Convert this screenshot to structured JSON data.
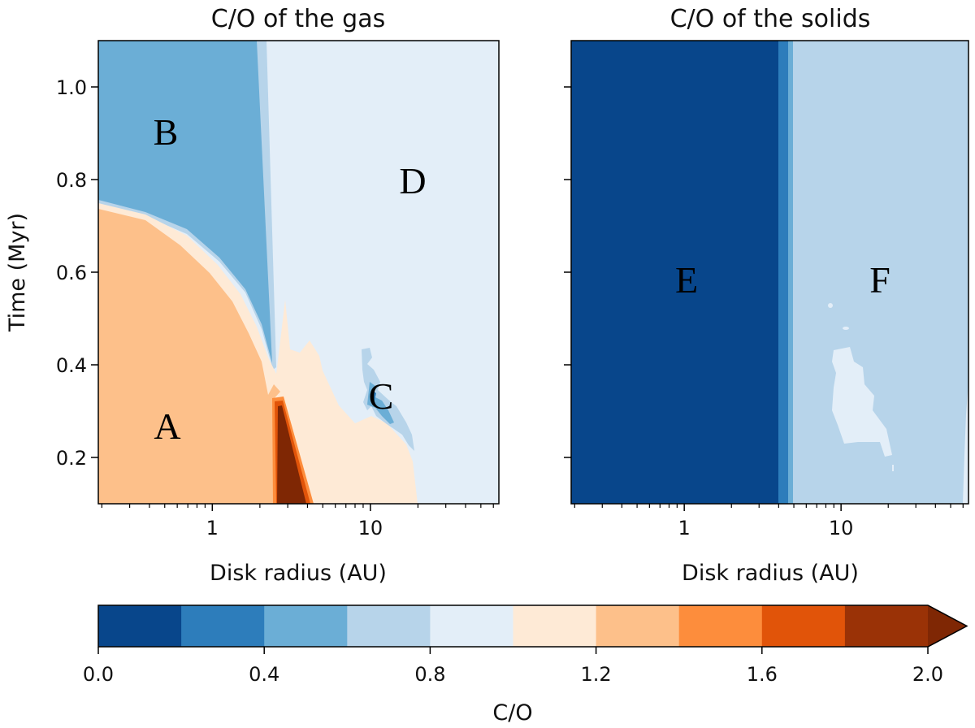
{
  "chart_data": [
    {
      "type": "heatmap",
      "title": "C/O of the gas",
      "xlabel": "Disk radius (AU)",
      "ylabel": "Time (Myr)",
      "xscale": "log",
      "xlim": [
        0.19,
        65
      ],
      "ylim": [
        0.1,
        1.1
      ],
      "xticks": [
        {
          "v": 1,
          "label": "1"
        },
        {
          "v": 10,
          "label": "10"
        }
      ],
      "yticks": [
        {
          "v": 0.2,
          "label": "0.2"
        },
        {
          "v": 0.4,
          "label": "0.4"
        },
        {
          "v": 0.6,
          "label": "0.6"
        },
        {
          "v": 0.8,
          "label": "0.8"
        },
        {
          "v": 1.0,
          "label": "1.0"
        }
      ],
      "regions": [
        {
          "label": "A",
          "co_range": "1.2-1.4"
        },
        {
          "label": "B",
          "co_range": "0.4-0.6"
        },
        {
          "label": "C",
          "co_range": "0.2-0.8"
        },
        {
          "label": "D",
          "co_range": "0.8-1.0"
        }
      ]
    },
    {
      "type": "heatmap",
      "title": "C/O of the solids",
      "xlabel": "Disk radius (AU)",
      "ylabel": "",
      "xscale": "log",
      "xlim": [
        0.19,
        65
      ],
      "ylim": [
        0.1,
        1.1
      ],
      "xticks": [
        {
          "v": 1,
          "label": "1"
        },
        {
          "v": 10,
          "label": "10"
        }
      ],
      "yticks": [
        {
          "v": 0.2
        },
        {
          "v": 0.4
        },
        {
          "v": 0.6
        },
        {
          "v": 0.8
        },
        {
          "v": 1.0
        }
      ],
      "regions": [
        {
          "label": "E",
          "co_range": "0.0-0.2"
        },
        {
          "label": "F",
          "co_range": "0.6-0.8"
        }
      ]
    }
  ],
  "colorbar": {
    "label": "C/O",
    "levels": [
      0.0,
      0.2,
      0.4,
      0.6,
      0.8,
      1.0,
      1.2,
      1.4,
      1.6,
      1.8,
      2.0
    ],
    "colors": [
      "#08468b",
      "#2d7dbb",
      "#6baed6",
      "#b7d4ea",
      "#e3eef8",
      "#feead6",
      "#fdc08a",
      "#fd8d3c",
      "#e15409",
      "#9a3206"
    ],
    "extend_color": "#7f2704",
    "extend": "max",
    "ticks": [
      {
        "v": 0.0,
        "label": "0.0"
      },
      {
        "v": 0.4,
        "label": "0.4"
      },
      {
        "v": 0.8,
        "label": "0.8"
      },
      {
        "v": 1.2,
        "label": "1.2"
      },
      {
        "v": 1.6,
        "label": "1.6"
      },
      {
        "v": 2.0,
        "label": "2.0"
      }
    ]
  }
}
